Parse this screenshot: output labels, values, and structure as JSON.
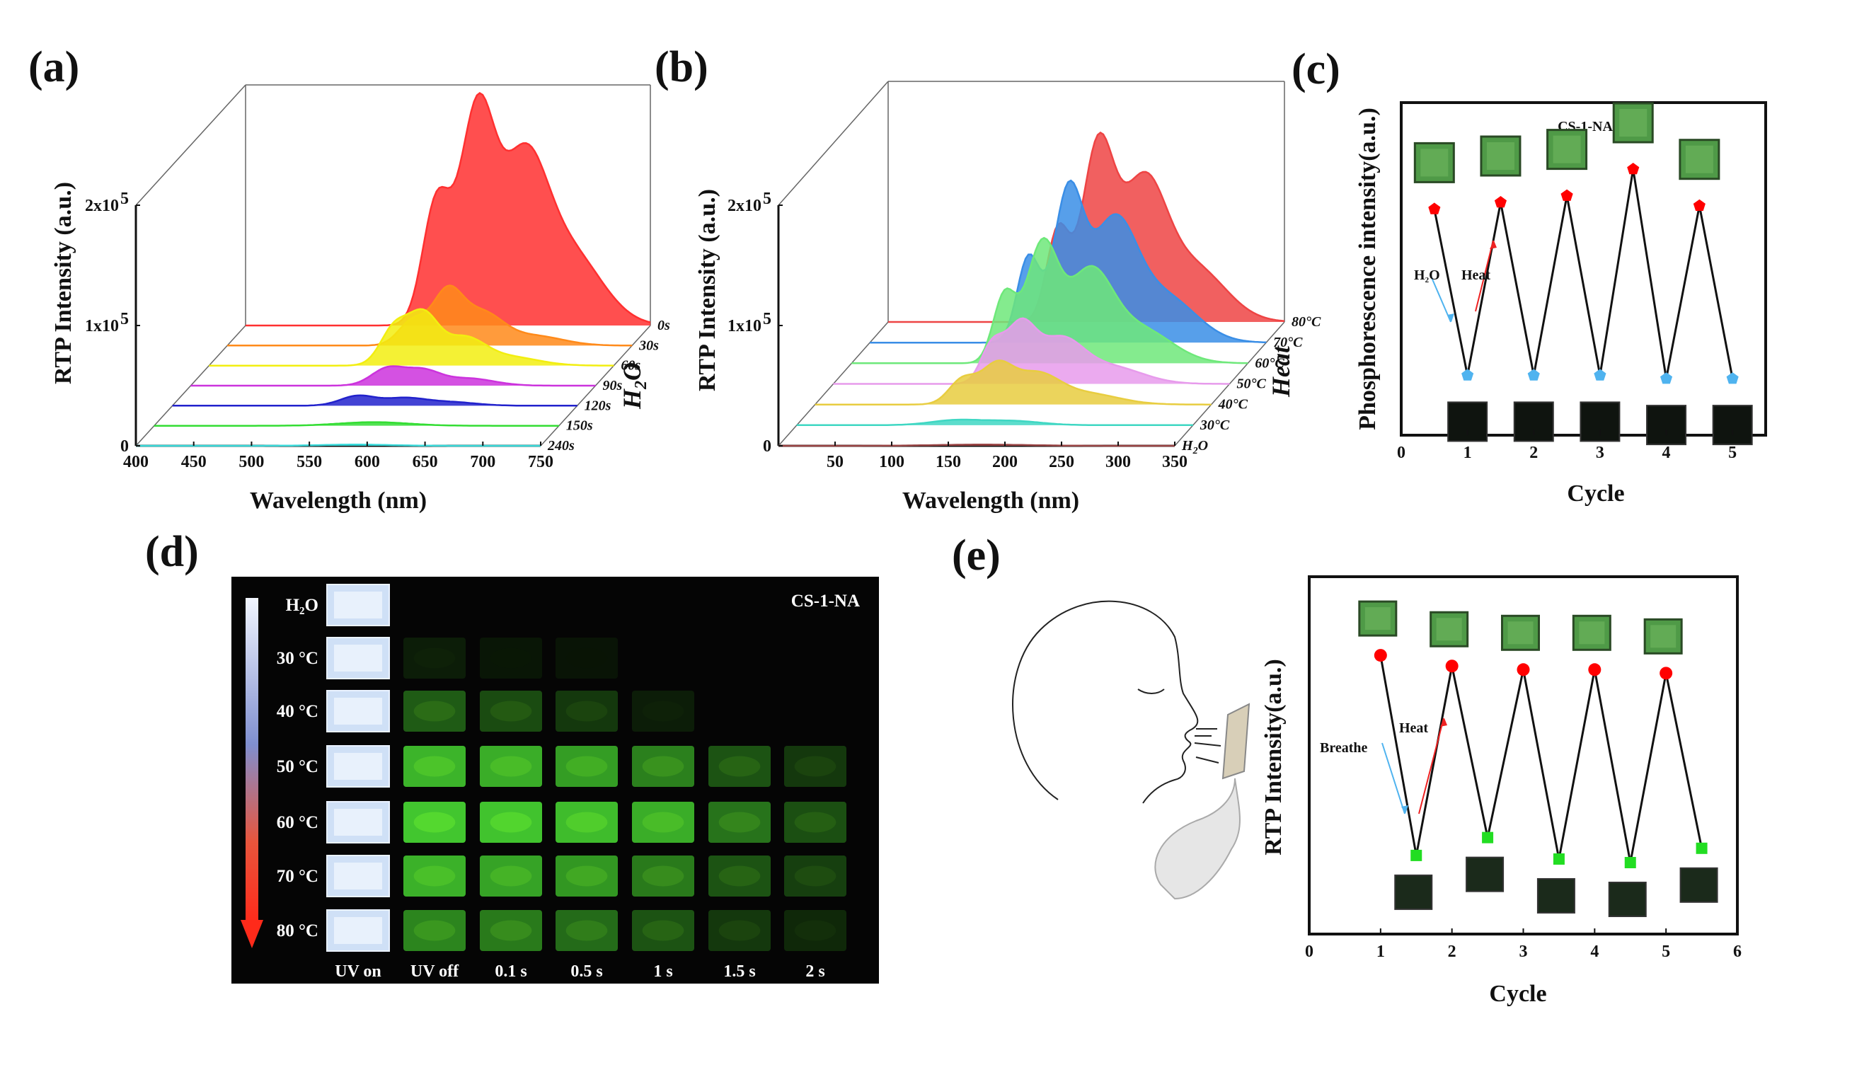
{
  "panels": {
    "a": {
      "label": "(a)"
    },
    "b": {
      "label": "(b)"
    },
    "c": {
      "label": "(c)"
    },
    "d": {
      "label": "(d)"
    },
    "e": {
      "label": "(e)"
    }
  },
  "chart_data": [
    {
      "id": "a",
      "type": "area",
      "style": "waterfall-3d",
      "xlabel": "Wavelength (nm)",
      "ylabel": "RTP Intensity (a.u.)",
      "depth_label": "H2O",
      "xlim": [
        400,
        750
      ],
      "ylim": [
        0,
        200000
      ],
      "xticks": [
        "400",
        "450",
        "500",
        "550",
        "600",
        "650",
        "700",
        "750"
      ],
      "yticks": [
        "0",
        "1x10",
        "2x10"
      ],
      "ytick_exp": "5",
      "series": [
        {
          "name": "0s",
          "color": "#ff3030",
          "peaks": [
            [
              565,
              100000,
              12
            ],
            [
              600,
              172000,
              15
            ],
            [
              640,
              125000,
              20
            ],
            [
              680,
              60000,
              28
            ]
          ]
        },
        {
          "name": "30s",
          "color": "#ff8a1a",
          "peaks": [
            [
              560,
              20000,
              12
            ],
            [
              590,
              42000,
              13
            ],
            [
              620,
              26000,
              18
            ],
            [
              665,
              8000,
              25
            ]
          ]
        },
        {
          "name": "60s",
          "color": "#f2ee10",
          "peaks": [
            [
              560,
              30000,
              12
            ],
            [
              585,
              40000,
              13
            ],
            [
              620,
              22000,
              18
            ],
            [
              660,
              7000,
              25
            ]
          ]
        },
        {
          "name": "90s",
          "color": "#cc33dd",
          "peaks": [
            [
              570,
              14000,
              14
            ],
            [
              600,
              12000,
              15
            ],
            [
              640,
              6000,
              22
            ]
          ]
        },
        {
          "name": "120s",
          "color": "#2222cc",
          "peaks": [
            [
              560,
              8000,
              15
            ],
            [
              600,
              6000,
              18
            ],
            [
              640,
              3000,
              22
            ]
          ]
        },
        {
          "name": "150s",
          "color": "#33dd33",
          "peaks": [
            [
              590,
              3000,
              30
            ]
          ]
        },
        {
          "name": "240s",
          "color": "#39d9d9",
          "peaks": [
            [
              590,
              1000,
              30
            ]
          ]
        }
      ]
    },
    {
      "id": "b",
      "type": "area",
      "style": "waterfall-3d",
      "xlabel": "Wavelength (nm)",
      "ylabel": "RTP Intensity (a.u.)",
      "depth_label": "Heat",
      "xlim": [
        0,
        350
      ],
      "ylim": [
        0,
        200000
      ],
      "xticks": [
        "50",
        "100",
        "150",
        "200",
        "250",
        "300",
        "350"
      ],
      "yticks": [
        "0",
        "1x10",
        "2x10"
      ],
      "ytick_exp": "5",
      "series": [
        {
          "name": "80°C",
          "color": "#ee4444",
          "peaks": [
            [
              150,
              75000,
              10
            ],
            [
              185,
              140000,
              14
            ],
            [
              225,
              110000,
              20
            ],
            [
              270,
              45000,
              28
            ]
          ]
        },
        {
          "name": "70°C",
          "color": "#3a8ee6",
          "peaks": [
            [
              140,
              70000,
              10
            ],
            [
              175,
              120000,
              13
            ],
            [
              215,
              95000,
              20
            ],
            [
              260,
              38000,
              28
            ]
          ]
        },
        {
          "name": "60°C",
          "color": "#6ee87a",
          "peaks": [
            [
              135,
              55000,
              10
            ],
            [
              168,
              95000,
              14
            ],
            [
              210,
              72000,
              20
            ],
            [
              255,
              28000,
              28
            ]
          ]
        },
        {
          "name": "50°C",
          "color": "#e79bec",
          "peaks": [
            [
              140,
              30000,
              10
            ],
            [
              165,
              45000,
              13
            ],
            [
              200,
              35000,
              20
            ],
            [
              245,
              14000,
              28
            ]
          ]
        },
        {
          "name": "40°C",
          "color": "#e8cd40",
          "peaks": [
            [
              130,
              20000,
              12
            ],
            [
              160,
              30000,
              14
            ],
            [
              195,
              24000,
              20
            ],
            [
              240,
              9000,
              28
            ]
          ]
        },
        {
          "name": "30°C",
          "color": "#3fd7c3",
          "peaks": [
            [
              140,
              4000,
              22
            ],
            [
              190,
              3500,
              25
            ]
          ]
        },
        {
          "name": "H2O",
          "color": "#994444",
          "peaks": [
            [
              180,
              1000,
              40
            ]
          ]
        }
      ]
    },
    {
      "id": "c",
      "type": "line",
      "title": "CS-1-NA",
      "xlabel": "Cycle",
      "ylabel": "Phosphorescence intensity(a.u.)",
      "xlim": [
        0,
        5.5
      ],
      "ylim": [
        0,
        1
      ],
      "xticks": [
        "0",
        "1",
        "2",
        "3",
        "4",
        "5"
      ],
      "x": [
        0.5,
        1,
        1.5,
        2,
        2.5,
        3,
        3.5,
        4,
        4.5,
        5
      ],
      "y": [
        0.68,
        0.18,
        0.7,
        0.18,
        0.72,
        0.18,
        0.8,
        0.17,
        0.69,
        0.17
      ],
      "state": [
        "on",
        "off",
        "on",
        "off",
        "on",
        "off",
        "on",
        "off",
        "on",
        "off"
      ],
      "on_color": "#ff0000",
      "off_color": "#4fb3ef",
      "arrows": {
        "down_label": "H2O",
        "up_label": "Heat"
      }
    },
    {
      "id": "e",
      "type": "line",
      "xlabel": "Cycle",
      "ylabel": "RTP Intensity(a.u.)",
      "xlim": [
        0,
        6
      ],
      "ylim": [
        0,
        1
      ],
      "xticks": [
        "0",
        "1",
        "2",
        "3",
        "4",
        "5",
        "6"
      ],
      "x": [
        1,
        1.5,
        2,
        2.5,
        3,
        3.5,
        4,
        4.5,
        5,
        5.5
      ],
      "y": [
        0.78,
        0.22,
        0.75,
        0.27,
        0.74,
        0.21,
        0.74,
        0.2,
        0.73,
        0.24
      ],
      "state": [
        "on",
        "off",
        "on",
        "off",
        "on",
        "off",
        "on",
        "off",
        "on",
        "off"
      ],
      "on_color": "#ff0000",
      "off_color": "#22dd22",
      "arrows": {
        "down_label": "Breathe",
        "up_label": "Heat"
      }
    }
  ],
  "photo_grid": {
    "title": "CS-1-NA",
    "rows": [
      "H₂O",
      "30 °C",
      "40 °C",
      "50 °C",
      "60 °C",
      "70 °C",
      "80 °C"
    ],
    "columns": [
      "UV on",
      "UV off",
      "0.1 s",
      "0.5 s",
      "1 s",
      "1.5 s",
      "2 s"
    ],
    "uv_on_color": "#3aa6e8",
    "uv_off_color": "#9ec4e8",
    "brightness": [
      [
        1.0,
        0,
        0,
        0,
        0,
        0,
        0
      ],
      [
        1.0,
        0.1,
        0.04,
        0.02,
        0,
        0,
        0
      ],
      [
        1.0,
        0.45,
        0.38,
        0.28,
        0.1,
        0,
        0
      ],
      [
        1.0,
        0.8,
        0.75,
        0.7,
        0.6,
        0.42,
        0.28
      ],
      [
        1.0,
        0.92,
        0.9,
        0.85,
        0.75,
        0.55,
        0.4
      ],
      [
        1.0,
        0.78,
        0.72,
        0.68,
        0.58,
        0.42,
        0.32
      ],
      [
        1.0,
        0.62,
        0.58,
        0.52,
        0.42,
        0.28,
        0.18
      ]
    ]
  }
}
